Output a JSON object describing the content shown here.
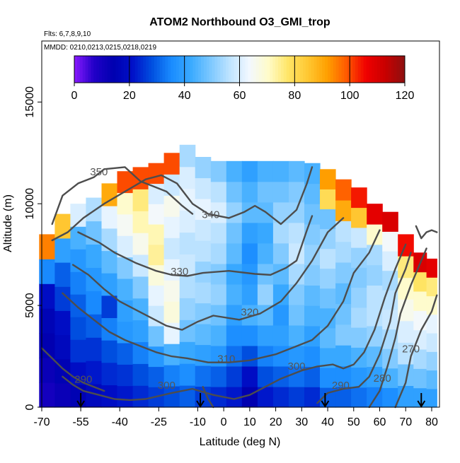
{
  "chart_data": {
    "type": "heatmap",
    "title": "ATOM2 Northbound O3_GMI_trop",
    "flights_note": "Flts: 6,7,8,9,10",
    "dates_note": "MMDD: 0210,0213,0215,0218,0219",
    "xlabel": "Latitude (deg N)",
    "ylabel": "Altitude (m)",
    "xlim": [
      -70,
      83
    ],
    "ylim": [
      0,
      18000
    ],
    "x_ticks": [
      -70,
      -55,
      -40,
      -25,
      -10,
      0,
      10,
      20,
      30,
      40,
      50,
      60,
      70,
      80
    ],
    "x_tick_labels": [
      "-70",
      "-55",
      "-40",
      "-25",
      "-10",
      "0",
      "10",
      "20",
      "30",
      "40",
      "50",
      "60",
      "70",
      "80"
    ],
    "y_ticks": [
      0,
      5000,
      10000,
      15000
    ],
    "y_tick_labels": [
      "0",
      "5000",
      "10000",
      "15000"
    ],
    "colorbar": {
      "min": 0,
      "max": 120,
      "ticks": [
        0,
        20,
        40,
        60,
        80,
        100,
        120
      ],
      "tick_labels": [
        "0",
        "20",
        "40",
        "60",
        "80",
        "100",
        "120"
      ],
      "colors": [
        "#8a1aff",
        "#2200c8",
        "#0000b0",
        "#0010c8",
        "#0050e0",
        "#1a8cff",
        "#3aaaff",
        "#7cc8ff",
        "#bfe4ff",
        "#f2f8ff",
        "#fffbc8",
        "#ffe566",
        "#ffc833",
        "#ffa000",
        "#ff5a00",
        "#f00000",
        "#c80000",
        "#8c1010"
      ]
    },
    "columns": [
      {
        "x": -68,
        "bottom": 0,
        "top": 8500,
        "values": [
          10,
          12,
          14,
          16,
          20,
          35,
          95
        ]
      },
      {
        "x": -62,
        "bottom": 0,
        "top": 9500,
        "values": [
          12,
          15,
          18,
          20,
          26,
          30,
          40,
          85
        ]
      },
      {
        "x": -56,
        "bottom": 0,
        "top": 10000,
        "values": [
          15,
          20,
          25,
          28,
          30,
          34,
          38,
          44,
          60
        ]
      },
      {
        "x": -50,
        "bottom": 0,
        "top": 10300,
        "values": [
          18,
          22,
          25,
          30,
          35,
          38,
          42,
          48,
          55
        ]
      },
      {
        "x": -44,
        "bottom": 0,
        "top": 11000,
        "values": [
          20,
          24,
          28,
          34,
          26,
          40,
          46,
          54,
          62,
          90
        ]
      },
      {
        "x": -38,
        "bottom": 0,
        "top": 11600,
        "values": [
          22,
          25,
          30,
          38,
          40,
          44,
          50,
          60,
          65,
          70,
          100
        ]
      },
      {
        "x": -32,
        "bottom": 0,
        "top": 11800,
        "values": [
          24,
          28,
          34,
          40,
          44,
          50,
          58,
          66,
          72,
          76,
          100
        ]
      },
      {
        "x": -26,
        "bottom": 0,
        "top": 12000,
        "values": [
          26,
          30,
          38,
          48,
          58,
          62,
          68,
          74,
          72,
          64,
          60,
          100
        ]
      },
      {
        "x": -20,
        "bottom": 0,
        "top": 12500,
        "values": [
          28,
          34,
          44,
          62,
          68,
          66,
          62,
          58,
          62,
          66,
          58,
          100
        ]
      },
      {
        "x": -14,
        "bottom": 0,
        "top": 12900,
        "values": [
          30,
          36,
          42,
          48,
          52,
          55,
          58,
          56,
          60,
          62,
          60,
          54
        ]
      },
      {
        "x": -8,
        "bottom": 0,
        "top": 12300,
        "values": [
          26,
          32,
          40,
          46,
          50,
          54,
          52,
          56,
          58,
          62,
          58,
          52
        ]
      },
      {
        "x": -2,
        "bottom": 0,
        "top": 12100,
        "values": [
          24,
          30,
          38,
          44,
          48,
          52,
          50,
          54,
          56,
          60,
          56,
          50
        ]
      },
      {
        "x": 4,
        "bottom": 0,
        "top": 12100,
        "values": [
          22,
          26,
          32,
          36,
          40,
          44,
          42,
          46,
          48,
          52,
          48,
          44
        ]
      },
      {
        "x": 10,
        "bottom": 0,
        "top": 12100,
        "values": [
          14,
          20,
          28,
          36,
          44,
          40,
          38,
          36,
          40,
          46,
          44,
          40
        ]
      },
      {
        "x": 16,
        "bottom": 0,
        "top": 12100,
        "values": [
          22,
          28,
          34,
          40,
          46,
          52,
          48,
          44,
          42,
          46,
          48,
          44
        ]
      },
      {
        "x": 22,
        "bottom": 0,
        "top": 12100,
        "values": [
          24,
          30,
          36,
          40,
          38,
          42,
          46,
          50,
          54,
          52,
          48,
          44
        ]
      },
      {
        "x": 28,
        "bottom": 0,
        "top": 12100,
        "values": [
          26,
          32,
          38,
          44,
          48,
          50,
          54,
          58,
          56,
          52,
          50,
          46
        ]
      },
      {
        "x": 34,
        "bottom": 0,
        "top": 12000,
        "values": [
          24,
          30,
          36,
          40,
          44,
          46,
          50,
          52,
          50,
          48,
          46,
          44
        ]
      },
      {
        "x": 40,
        "bottom": 0,
        "top": 11700,
        "values": [
          30,
          36,
          42,
          46,
          44,
          48,
          52,
          56,
          52,
          48,
          80,
          92
        ]
      },
      {
        "x": 46,
        "bottom": 0,
        "top": 11200,
        "values": [
          30,
          36,
          42,
          50,
          48,
          46,
          50,
          54,
          56,
          90,
          98
        ]
      },
      {
        "x": 52,
        "bottom": 0,
        "top": 10800,
        "values": [
          32,
          38,
          44,
          50,
          54,
          52,
          50,
          52,
          58,
          85,
          104
        ]
      },
      {
        "x": 58,
        "bottom": 0,
        "top": 10000,
        "values": [
          34,
          40,
          46,
          52,
          56,
          56,
          52,
          54,
          70,
          108
        ]
      },
      {
        "x": 64,
        "bottom": 0,
        "top": 9600,
        "values": [
          36,
          44,
          50,
          54,
          58,
          56,
          54,
          60,
          64,
          110
        ]
      },
      {
        "x": 70,
        "bottom": 0,
        "top": 8500,
        "values": [
          40,
          48,
          56,
          60,
          66,
          70,
          76,
          105
        ]
      },
      {
        "x": 76,
        "bottom": 0,
        "top": 7600,
        "values": [
          40,
          48,
          54,
          60,
          64,
          70,
          78,
          110
        ]
      },
      {
        "x": 80,
        "bottom": 0,
        "top": 7300,
        "values": [
          40,
          46,
          52,
          58,
          62,
          70,
          76,
          108
        ]
      }
    ],
    "contours": [
      {
        "label": "350",
        "label_x": -48,
        "label_y": 11400,
        "points": [
          [
            -66,
            9000
          ],
          [
            -62,
            10400
          ],
          [
            -56,
            11000
          ],
          [
            -50,
            11300
          ],
          [
            -46,
            11700
          ],
          [
            -38,
            11800
          ],
          [
            -32,
            11100
          ],
          [
            -28,
            10900
          ],
          [
            -22,
            10600
          ],
          [
            -16,
            9900
          ],
          [
            -12,
            9500
          ]
        ]
      },
      {
        "label": "340",
        "label_x": -5,
        "label_y": 9300,
        "points": [
          [
            -66,
            8200
          ],
          [
            -60,
            8600
          ],
          [
            -54,
            9300
          ],
          [
            -46,
            10000
          ],
          [
            -38,
            10600
          ],
          [
            -30,
            11200
          ],
          [
            -24,
            11400
          ],
          [
            -18,
            11000
          ],
          [
            -12,
            10000
          ],
          [
            -6,
            9500
          ],
          [
            2,
            9300
          ],
          [
            8,
            9600
          ],
          [
            12,
            9900
          ],
          [
            16,
            9600
          ],
          [
            22,
            9000
          ],
          [
            28,
            9700
          ],
          [
            32,
            11000
          ],
          [
            34,
            11800
          ]
        ]
      },
      {
        "label": "330",
        "label_x": -17,
        "label_y": 6500,
        "points": [
          [
            -56,
            8600
          ],
          [
            -48,
            8100
          ],
          [
            -42,
            7600
          ],
          [
            -34,
            7100
          ],
          [
            -26,
            6700
          ],
          [
            -20,
            6500
          ],
          [
            -14,
            6450
          ],
          [
            -8,
            6600
          ],
          [
            2,
            6700
          ],
          [
            12,
            6550
          ],
          [
            18,
            6500
          ],
          [
            24,
            6850
          ],
          [
            28,
            7200
          ],
          [
            32,
            8700
          ],
          [
            34,
            9400
          ]
        ]
      },
      {
        "label": "320",
        "label_x": 10,
        "label_y": 4500,
        "points": [
          [
            -58,
            7000
          ],
          [
            -52,
            6500
          ],
          [
            -46,
            5800
          ],
          [
            -40,
            5200
          ],
          [
            -34,
            4800
          ],
          [
            -28,
            4400
          ],
          [
            -22,
            4000
          ],
          [
            -16,
            3800
          ],
          [
            -10,
            4200
          ],
          [
            -4,
            4500
          ],
          [
            6,
            4300
          ],
          [
            14,
            4600
          ],
          [
            22,
            5200
          ],
          [
            28,
            6100
          ],
          [
            34,
            7200
          ],
          [
            40,
            8600
          ],
          [
            46,
            9300
          ]
        ]
      },
      {
        "label": "310",
        "label_x": 1,
        "label_y": 2200,
        "points": [
          [
            -62,
            5600
          ],
          [
            -56,
            4900
          ],
          [
            -50,
            4300
          ],
          [
            -44,
            3700
          ],
          [
            -38,
            3300
          ],
          [
            -32,
            3000
          ],
          [
            -26,
            2700
          ],
          [
            -20,
            2500
          ],
          [
            -14,
            2400
          ],
          [
            -6,
            2200
          ],
          [
            2,
            2200
          ],
          [
            10,
            2300
          ],
          [
            20,
            2600
          ],
          [
            28,
            3000
          ],
          [
            34,
            3300
          ],
          [
            40,
            4000
          ],
          [
            46,
            5200
          ],
          [
            50,
            6600
          ],
          [
            56,
            7600
          ],
          [
            60,
            8700
          ]
        ]
      },
      {
        "label": "300",
        "label_x": 28,
        "label_y": 1850,
        "points": [
          [
            -62,
            1500
          ],
          [
            -58,
            1100
          ],
          [
            -54,
            800
          ],
          [
            -48,
            600
          ],
          [
            -42,
            400
          ],
          [
            -36,
            350
          ],
          [
            -30,
            400
          ],
          [
            -20,
            700
          ],
          [
            -12,
            900
          ],
          [
            -4,
            600
          ],
          [
            4,
            400
          ],
          [
            10,
            600
          ],
          [
            16,
            1000
          ],
          [
            22,
            1400
          ],
          [
            30,
            1800
          ],
          [
            36,
            2000
          ],
          [
            42,
            2100
          ],
          [
            46,
            1900
          ],
          [
            50,
            2100
          ],
          [
            54,
            2700
          ],
          [
            58,
            3800
          ],
          [
            62,
            5400
          ],
          [
            66,
            6800
          ],
          [
            70,
            8000
          ]
        ]
      },
      {
        "label": "290",
        "label_x": -54,
        "label_y": 1200,
        "points": [
          [
            -70,
            2900
          ],
          [
            -66,
            2400
          ],
          [
            -62,
            1900
          ],
          [
            -58,
            1500
          ],
          [
            -54,
            1200
          ],
          [
            -50,
            1000
          ],
          [
            -46,
            800
          ]
        ]
      },
      {
        "label": "300",
        "label_x": -22,
        "label_y": 900,
        "points": [
          [
            -8,
            1000
          ],
          [
            -6,
            400
          ],
          [
            -4,
            0
          ]
        ]
      },
      {
        "label": "290",
        "label_x": 45,
        "label_y": 900,
        "points": [
          [
            36,
            200
          ],
          [
            40,
            700
          ],
          [
            46,
            900
          ],
          [
            52,
            1000
          ],
          [
            56,
            1500
          ],
          [
            60,
            2600
          ],
          [
            64,
            4200
          ],
          [
            66,
            5600
          ],
          [
            70,
            6800
          ],
          [
            72,
            7600
          ]
        ]
      },
      {
        "label": "280",
        "label_x": 61,
        "label_y": 1250,
        "points": [
          [
            56,
            0
          ],
          [
            60,
            800
          ],
          [
            63,
            2000
          ],
          [
            66,
            3400
          ],
          [
            68,
            4600
          ],
          [
            72,
            6000
          ],
          [
            76,
            7200
          ],
          [
            78,
            7800
          ]
        ]
      },
      {
        "label": "270",
        "label_x": 72,
        "label_y": 2700,
        "points": [
          [
            66,
            0
          ],
          [
            70,
            1200
          ],
          [
            72,
            2500
          ],
          [
            76,
            3800
          ],
          [
            80,
            4700
          ],
          [
            82,
            5500
          ]
        ]
      },
      {
        "label": "",
        "label_x": 0,
        "label_y": 0,
        "points": [
          [
            74,
            8900
          ],
          [
            76,
            8300
          ],
          [
            78,
            8600
          ],
          [
            80,
            8700
          ],
          [
            82,
            8600
          ]
        ]
      }
    ],
    "arrows_x": [
      -55,
      -9,
      39,
      76
    ]
  }
}
